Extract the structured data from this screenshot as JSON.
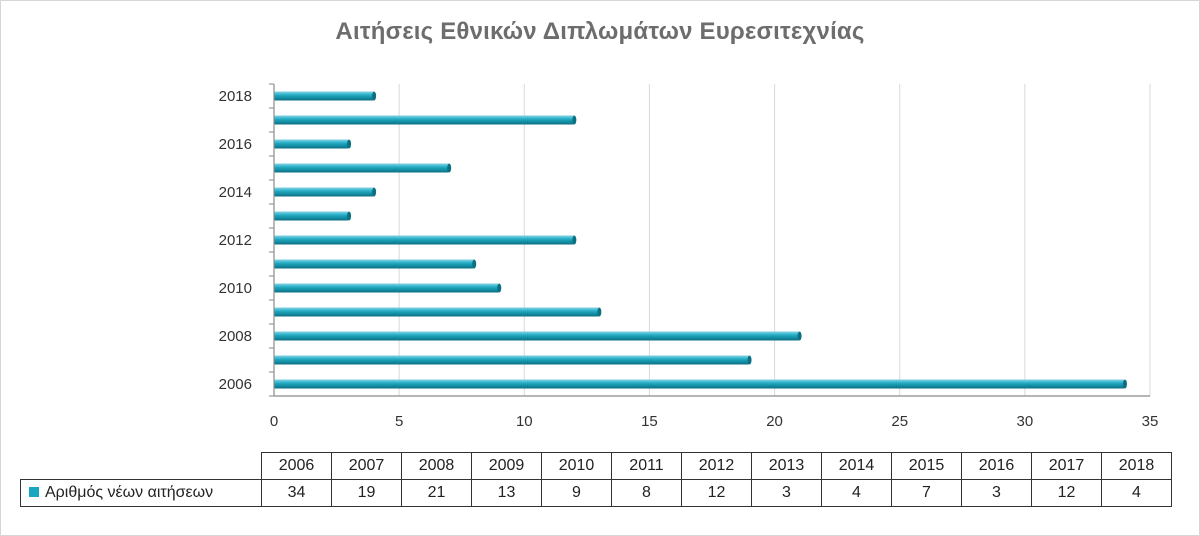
{
  "chart_data": {
    "type": "bar",
    "orientation": "horizontal",
    "title": "Αιτήσεις Εθνικών Διπλωμάτων Ευρεσιτεχνίας",
    "categories": [
      "2006",
      "2007",
      "2008",
      "2009",
      "2010",
      "2011",
      "2012",
      "2013",
      "2014",
      "2015",
      "2016",
      "2017",
      "2018"
    ],
    "y_tick_labels": [
      "2006",
      "2008",
      "2010",
      "2012",
      "2014",
      "2016",
      "2018"
    ],
    "series": [
      {
        "name": "Αριθμός νέων αιτήσεων",
        "values": [
          34,
          19,
          21,
          13,
          9,
          8,
          12,
          3,
          4,
          7,
          3,
          12,
          4
        ],
        "color": "#1aa6bf"
      }
    ],
    "xlim": [
      0,
      35
    ],
    "x_ticks": [
      "0",
      "5",
      "10",
      "15",
      "20",
      "25",
      "30",
      "35"
    ],
    "grid": "vertical",
    "legend": "data-table-below"
  }
}
